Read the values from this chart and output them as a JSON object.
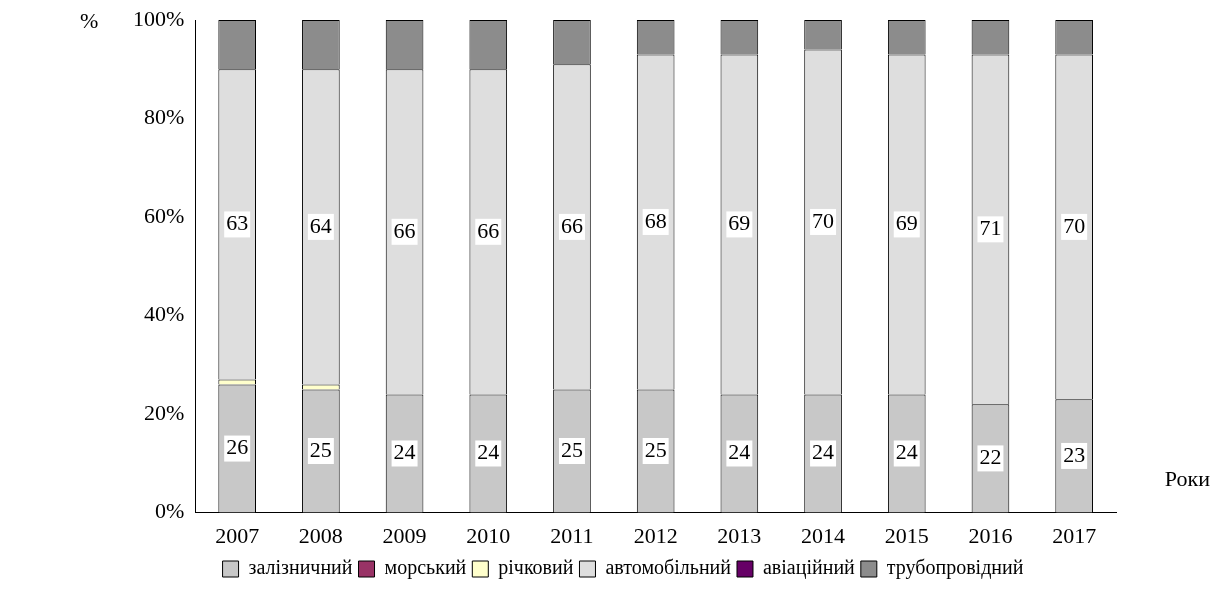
{
  "chart_data": {
    "type": "bar",
    "stacked": true,
    "ylabel": "%",
    "xlabel": "Роки",
    "categories": [
      "2007",
      "2008",
      "2009",
      "2010",
      "2011",
      "2012",
      "2013",
      "2014",
      "2015",
      "2016",
      "2017"
    ],
    "ylim": [
      0,
      100
    ],
    "yticks": [
      {
        "value": 0,
        "label": "0%"
      },
      {
        "value": 20,
        "label": "20%"
      },
      {
        "value": 40,
        "label": "40%"
      },
      {
        "value": 60,
        "label": "60%"
      },
      {
        "value": 80,
        "label": "80%"
      },
      {
        "value": 100,
        "label": "100%"
      }
    ],
    "grid": false,
    "legend": "bottom",
    "series": [
      {
        "name": "залізничний",
        "color": "#c8c8c8",
        "values": [
          26,
          25,
          24,
          24,
          25,
          25,
          24,
          24,
          24,
          22,
          23
        ],
        "value_labels": [
          "26",
          "25",
          "24",
          "24",
          "25",
          "25",
          "24",
          "24",
          "24",
          "22",
          "23"
        ]
      },
      {
        "name": "морський",
        "color": "#993366",
        "values": [
          0,
          0,
          0,
          0,
          0,
          0,
          0,
          0,
          0,
          0,
          0
        ]
      },
      {
        "name": "річковий",
        "color": "#ffffcc",
        "values": [
          1,
          1,
          0,
          0,
          0,
          0,
          0,
          0,
          0,
          0,
          0
        ]
      },
      {
        "name": "автомобільний",
        "color": "#dedede",
        "values": [
          63,
          64,
          66,
          66,
          66,
          68,
          69,
          70,
          69,
          71,
          70
        ],
        "value_labels": [
          "63",
          "64",
          "66",
          "66",
          "66",
          "68",
          "69",
          "70",
          "69",
          "71",
          "70"
        ]
      },
      {
        "name": "авіаційний",
        "color": "#660066",
        "values": [
          0,
          0,
          0,
          0,
          0,
          0,
          0,
          0,
          0,
          0,
          0
        ]
      },
      {
        "name": "трубопровідний",
        "color": "#8c8c8c",
        "values": [
          10,
          10,
          10,
          10,
          9,
          7,
          7,
          6,
          7,
          7,
          7
        ]
      }
    ]
  }
}
